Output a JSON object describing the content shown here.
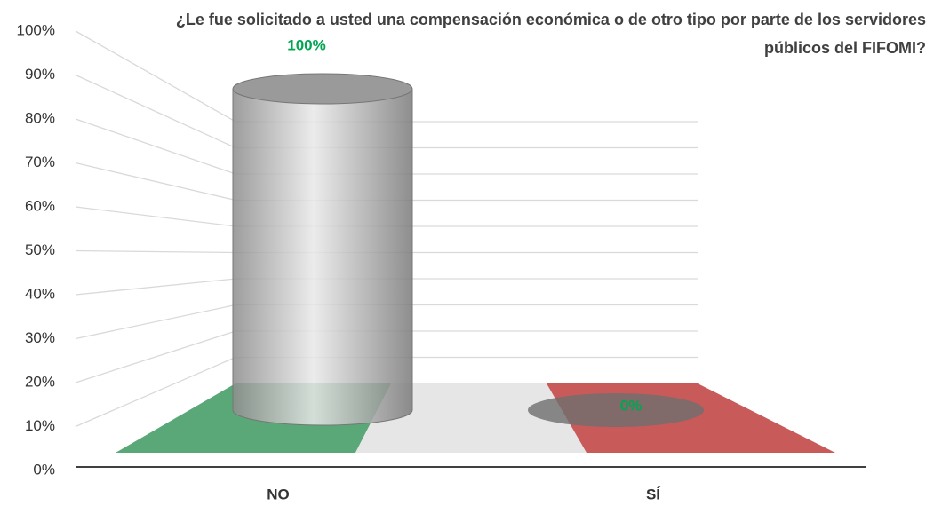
{
  "chart_data": {
    "type": "cylinder",
    "title": "¿Le fue solicitado a usted una compensación económica o de otro tipo por parte de los servidores públicos del FIFOMI?",
    "categories": [
      "NO",
      "SÍ"
    ],
    "values": [
      100,
      0
    ],
    "value_labels": [
      "100%",
      "0%"
    ],
    "color": "#a6a6a6",
    "label_color": "#00a651",
    "ylim": [
      0,
      100
    ],
    "yticks": [
      {
        "value": 0,
        "label": "0%"
      },
      {
        "value": 10,
        "label": "10%"
      },
      {
        "value": 20,
        "label": "20%"
      },
      {
        "value": 30,
        "label": "30%"
      },
      {
        "value": 40,
        "label": "40%"
      },
      {
        "value": 50,
        "label": "50%"
      },
      {
        "value": 60,
        "label": "60%"
      },
      {
        "value": 70,
        "label": "70%"
      },
      {
        "value": 80,
        "label": "80%"
      },
      {
        "value": 90,
        "label": "90%"
      },
      {
        "value": 100,
        "label": "100%"
      }
    ],
    "grid": true
  }
}
